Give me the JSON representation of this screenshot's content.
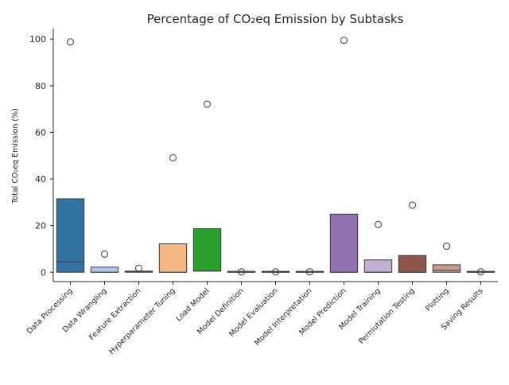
{
  "chart_data": {
    "type": "boxplot",
    "title": "Percentage of CO₂eq Emission by Subtasks",
    "xlabel": "",
    "ylabel": "Total CO₂eq Emission (%)",
    "ylim": [
      -4,
      104.5
    ],
    "yticks": [
      0,
      20,
      40,
      60,
      80,
      100
    ],
    "grid": false,
    "legend": "none",
    "categories": [
      "Data Processing",
      "Data Wrangling",
      "Feature Extraction",
      "Hyperparameter Tuning",
      "Load Model",
      "Model Definition",
      "Model Evaluation",
      "Model Interpretation",
      "Model Prediction",
      "Model Training",
      "Permutation Testing",
      "Plotting",
      "Saving Results"
    ],
    "boxes": [
      {
        "category": "Data Processing",
        "min": 0,
        "q1": 0,
        "median": 4.5,
        "q3": 31.5,
        "max": 31.5,
        "outliers": [
          98.8
        ],
        "color": "#3274a1"
      },
      {
        "category": "Data Wrangling",
        "min": 0,
        "q1": 0,
        "median": 0,
        "q3": 2.2,
        "max": 2.2,
        "outliers": [
          7.8
        ],
        "color": "#aec7e8"
      },
      {
        "category": "Feature Extraction",
        "min": 0,
        "q1": 0,
        "median": 0.2,
        "q3": 0.5,
        "max": 0.5,
        "outliers": [
          1.7
        ],
        "color": "#ff7f0e"
      },
      {
        "category": "Hyperparameter Tuning",
        "min": 0,
        "q1": 0,
        "median": 0,
        "q3": 12.2,
        "max": 12.2,
        "outliers": [
          49.1
        ],
        "color": "#f5b885"
      },
      {
        "category": "Load Model",
        "min": 0.5,
        "q1": 0.5,
        "median": 0.5,
        "q3": 18.7,
        "max": 18.7,
        "outliers": [
          72.1
        ],
        "color": "#2ca02c"
      },
      {
        "category": "Model Definition",
        "min": 0,
        "q1": 0,
        "median": 0,
        "q3": 0.2,
        "max": 0.2,
        "outliers": [
          0.2
        ],
        "color": "#98df8a"
      },
      {
        "category": "Model Evaluation",
        "min": 0,
        "q1": 0,
        "median": 0,
        "q3": 0.2,
        "max": 0.2,
        "outliers": [
          0.2
        ],
        "color": "#d62728"
      },
      {
        "category": "Model Interpretation",
        "min": 0,
        "q1": 0,
        "median": 0,
        "q3": 0.2,
        "max": 0.2,
        "outliers": [
          0.2
        ],
        "color": "#ff9896"
      },
      {
        "category": "Model Prediction",
        "min": 0,
        "q1": 0,
        "median": 0,
        "q3": 24.9,
        "max": 24.9,
        "outliers": [
          99.5
        ],
        "color": "#9372b2"
      },
      {
        "category": "Model Training",
        "min": 0,
        "q1": 0,
        "median": 0,
        "q3": 5.3,
        "max": 5.3,
        "outliers": [
          20.5
        ],
        "color": "#c5b0d5"
      },
      {
        "category": "Permutation Testing",
        "min": 0,
        "q1": 0,
        "median": 0,
        "q3": 7.2,
        "max": 7.2,
        "outliers": [
          28.8
        ],
        "color": "#8c564b"
      },
      {
        "category": "Plotting",
        "min": 0,
        "q1": 0,
        "median": 0.8,
        "q3": 3.2,
        "max": 3.2,
        "outliers": [
          11.2
        ],
        "color": "#c49c94"
      },
      {
        "category": "Saving Results",
        "min": 0,
        "q1": 0,
        "median": 0,
        "q3": 0.2,
        "max": 0.2,
        "outliers": [
          0.2
        ],
        "color": "#e377c2"
      }
    ]
  }
}
